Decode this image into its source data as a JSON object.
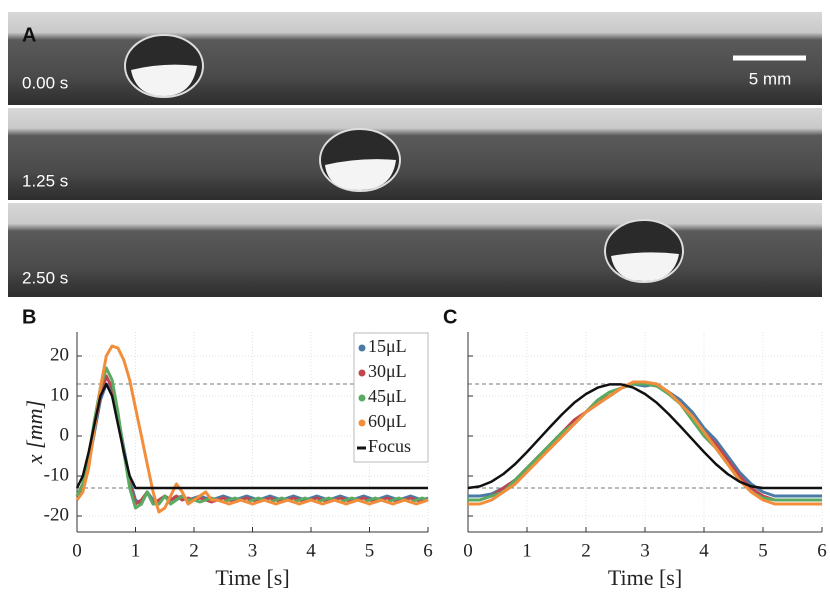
{
  "panel_a": {
    "label": "A",
    "frames": [
      "0.00 s",
      "1.25 s",
      "2.50 s"
    ],
    "scale_bar": "5 mm"
  },
  "chart_data": [
    {
      "type": "line",
      "panel_label": "B",
      "xlabel": "Time [s]",
      "ylabel": "x [mm]",
      "xlim": [
        0,
        6
      ],
      "xticks": [
        0,
        1,
        2,
        3,
        4,
        5,
        6
      ],
      "ylim": [
        -24,
        26
      ],
      "yticks": [
        -20,
        -10,
        0,
        10,
        20
      ],
      "grid": true,
      "hlines": [
        13,
        -13
      ],
      "legend": "upper right",
      "x": [
        0,
        0.1,
        0.2,
        0.3,
        0.4,
        0.5,
        0.6,
        0.7,
        0.8,
        0.9,
        1,
        1.1,
        1.2,
        1.3,
        1.4,
        1.5,
        1.6,
        1.7,
        1.8,
        1.9,
        2,
        2.1,
        2.2,
        2.3,
        2.4,
        2.5,
        2.6,
        2.7,
        2.8,
        2.9,
        3,
        3.1,
        3.2,
        3.3,
        3.4,
        3.5,
        3.6,
        3.7,
        3.8,
        3.9,
        4,
        4.1,
        4.2,
        4.3,
        4.4,
        4.5,
        4.6,
        4.7,
        4.8,
        4.9,
        5,
        5.1,
        5.2,
        5.3,
        5.4,
        5.5,
        5.6,
        5.7,
        5.8,
        5.9,
        6
      ],
      "series": [
        {
          "name": "15μL",
          "color": "#4a7ba6",
          "values": [
            -15,
            -13,
            -7,
            1,
            9,
            13,
            11,
            5,
            -3,
            -11,
            -16,
            -17,
            -14,
            -16,
            -17,
            -15,
            -16,
            -15.5,
            -15,
            -16,
            -15.5,
            -15,
            -15.5,
            -16,
            -15.5,
            -15,
            -15.5,
            -16,
            -15.5,
            -15,
            -15.5,
            -16,
            -15.5,
            -15,
            -15.5,
            -16,
            -15.5,
            -15,
            -15.5,
            -16,
            -15.5,
            -15,
            -15.5,
            -16,
            -15.5,
            -15,
            -15.5,
            -16,
            -15.5,
            -15,
            -15.5,
            -16,
            -15.5,
            -15,
            -15.5,
            -16,
            -15.5,
            -15,
            -15.5,
            -16,
            -15.5
          ]
        },
        {
          "name": "30μL",
          "color": "#c0454f",
          "values": [
            -15,
            -12,
            -6,
            2,
            10,
            15,
            12,
            5,
            -4,
            -12,
            -17,
            -16,
            -14,
            -17,
            -16,
            -15,
            -16,
            -15,
            -16,
            -15.5,
            -16,
            -15.5,
            -16,
            -16.5,
            -16,
            -15.5,
            -16,
            -16.5,
            -16,
            -15.5,
            -16,
            -16.5,
            -16,
            -15.5,
            -16,
            -16.5,
            -16,
            -15.5,
            -16,
            -16.5,
            -16,
            -15.5,
            -16,
            -16.5,
            -16,
            -15.5,
            -16,
            -16.5,
            -16,
            -15.5,
            -16,
            -16.5,
            -16,
            -15.5,
            -16,
            -16.5,
            -16,
            -15.5,
            -16,
            -16.5,
            -16
          ]
        },
        {
          "name": "45μL",
          "color": "#5aab61",
          "values": [
            -15,
            -12,
            -5,
            4,
            12,
            17,
            14,
            6,
            -4,
            -13,
            -18,
            -17,
            -14,
            -17,
            -17,
            -15,
            -17,
            -16,
            -15,
            -16,
            -16,
            -16.5,
            -16,
            -15.5,
            -16,
            -16.5,
            -16,
            -15.5,
            -16,
            -16.5,
            -16,
            -15.5,
            -16,
            -16.5,
            -16,
            -15.5,
            -16,
            -16.5,
            -16,
            -15.5,
            -16,
            -16.5,
            -16,
            -15.5,
            -16,
            -16.5,
            -16,
            -15.5,
            -16,
            -16.5,
            -16,
            -15.5,
            -16,
            -16.5,
            -16,
            -15.5,
            -16,
            -16.5,
            -16,
            -15.5,
            -16
          ]
        },
        {
          "name": "60μL",
          "color": "#f28e3b",
          "values": [
            -16,
            -14,
            -8,
            2,
            12,
            20,
            22.5,
            22,
            19,
            14,
            7,
            0,
            -7,
            -14,
            -19,
            -18,
            -15,
            -12,
            -14,
            -17,
            -16,
            -15,
            -14,
            -16,
            -16,
            -16.5,
            -17,
            -16.5,
            -16,
            -16.5,
            -17,
            -16.5,
            -16,
            -16.5,
            -17,
            -16.5,
            -16,
            -16.5,
            -17,
            -16.5,
            -16,
            -16.5,
            -17,
            -16.5,
            -16,
            -16.5,
            -17,
            -16.5,
            -16,
            -16.5,
            -17,
            -16.5,
            -16,
            -16.5,
            -17,
            -16.5,
            -16,
            -16.5,
            -17,
            -16.5,
            -16
          ]
        },
        {
          "name": "Focus",
          "color": "#111111",
          "values": [
            -13,
            -10,
            -4,
            3,
            10,
            13,
            10,
            3,
            -4,
            -10,
            -13,
            -13,
            -13,
            -13,
            -13,
            -13,
            -13,
            -13,
            -13,
            -13,
            -13,
            -13,
            -13,
            -13,
            -13,
            -13,
            -13,
            -13,
            -13,
            -13,
            -13,
            -13,
            -13,
            -13,
            -13,
            -13,
            -13,
            -13,
            -13,
            -13,
            -13,
            -13,
            -13,
            -13,
            -13,
            -13,
            -13,
            -13,
            -13,
            -13,
            -13,
            -13,
            -13,
            -13,
            -13,
            -13,
            -13,
            -13,
            -13,
            -13,
            -13
          ]
        }
      ]
    },
    {
      "type": "line",
      "panel_label": "C",
      "xlabel": "Time [s]",
      "xlim": [
        0,
        6
      ],
      "xticks": [
        0,
        1,
        2,
        3,
        4,
        5,
        6
      ],
      "ylim": [
        -24,
        26
      ],
      "yticks": [
        -20,
        -10,
        0,
        10,
        20
      ],
      "ytick_labels": false,
      "grid": true,
      "hlines": [
        13,
        -13
      ],
      "x": [
        0,
        0.2,
        0.4,
        0.6,
        0.8,
        1,
        1.2,
        1.4,
        1.6,
        1.8,
        2,
        2.2,
        2.4,
        2.6,
        2.8,
        3,
        3.2,
        3.4,
        3.6,
        3.8,
        4,
        4.2,
        4.4,
        4.6,
        4.8,
        5,
        5.2,
        5.4,
        5.6,
        5.8,
        6
      ],
      "series": [
        {
          "color": "#4a7ba6",
          "values": [
            -15,
            -15,
            -14.5,
            -13,
            -11,
            -8,
            -5,
            -3,
            0,
            3,
            6,
            8,
            10,
            12,
            13,
            12.5,
            13,
            11,
            9,
            6,
            2,
            -1,
            -5,
            -9,
            -12,
            -14,
            -15,
            -15,
            -15,
            -15,
            -15
          ]
        },
        {
          "color": "#c0454f",
          "values": [
            -16,
            -16,
            -15,
            -13,
            -11,
            -8,
            -5,
            -2,
            1,
            4,
            6,
            9,
            10,
            12,
            13,
            13,
            12.5,
            11,
            8,
            5,
            1,
            -2,
            -6,
            -10,
            -13,
            -15,
            -16,
            -16,
            -16,
            -16,
            -16
          ]
        },
        {
          "color": "#5aab61",
          "values": [
            -16,
            -16,
            -15,
            -14,
            -11,
            -8,
            -5,
            -2,
            1,
            3,
            6,
            9,
            11,
            12,
            13,
            13,
            12.5,
            10.5,
            8,
            4,
            0,
            -3,
            -7,
            -11,
            -14,
            -15.5,
            -16,
            -16,
            -16,
            -16,
            -16
          ]
        },
        {
          "color": "#f28e3b",
          "values": [
            -17,
            -17,
            -16,
            -14,
            -12,
            -9,
            -6,
            -3,
            0,
            3,
            6,
            8,
            10,
            12,
            13.5,
            13.5,
            13,
            11,
            8,
            5,
            1,
            -3,
            -7,
            -11,
            -14,
            -16,
            -17,
            -17,
            -17,
            -17,
            -17
          ]
        },
        {
          "color": "#111111",
          "values": [
            -13,
            -12.6,
            -11.4,
            -9.5,
            -7,
            -4,
            -0.8,
            2.4,
            5.5,
            8.3,
            10.5,
            12.1,
            12.9,
            12.9,
            12.1,
            10.5,
            8.3,
            5.5,
            2.4,
            -0.8,
            -4,
            -7,
            -9.5,
            -11.4,
            -12.6,
            -13,
            -13,
            -13,
            -13,
            -13,
            -13
          ]
        }
      ]
    }
  ]
}
